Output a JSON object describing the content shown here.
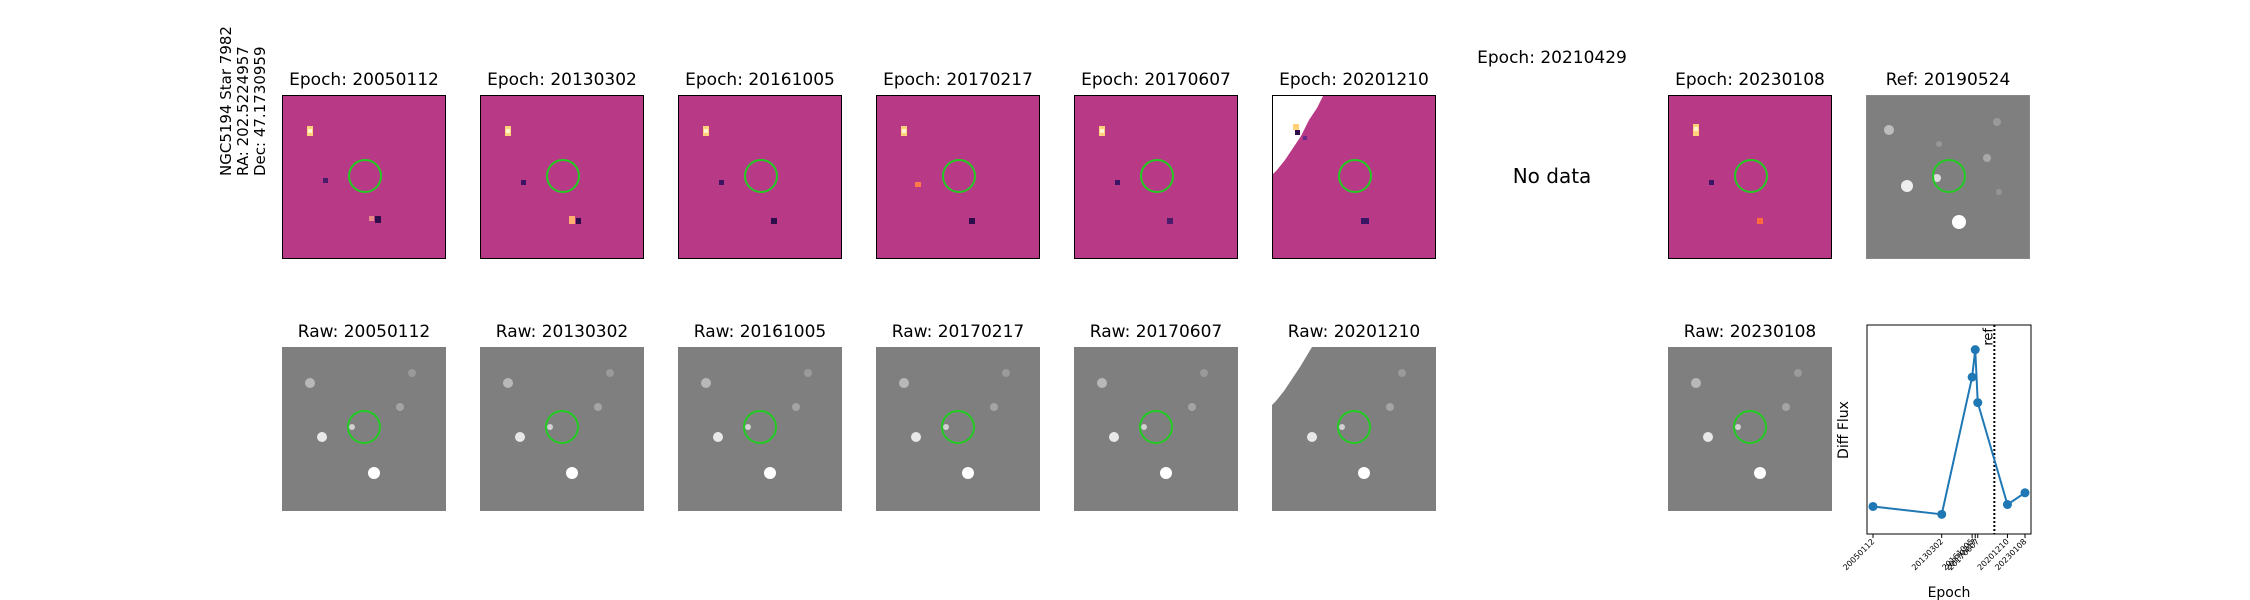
{
  "target": {
    "name": "NGC5194 Star 7982",
    "ra": "RA: 202.5224957",
    "dec": "Dec: 47.1730959"
  },
  "diff_panels": [
    {
      "title": "Epoch: 20050112",
      "has_data": true
    },
    {
      "title": "Epoch: 20130302",
      "has_data": true
    },
    {
      "title": "Epoch: 20161005",
      "has_data": true
    },
    {
      "title": "Epoch: 20170217",
      "has_data": true
    },
    {
      "title": "Epoch: 20170607",
      "has_data": true
    },
    {
      "title": "Epoch: 20201210",
      "has_data": true
    },
    {
      "title": "Epoch: 20210429",
      "has_data": false,
      "message": "No data"
    },
    {
      "title": "Epoch: 20230108",
      "has_data": true
    }
  ],
  "reference_panel": {
    "title": "Ref: 20190524"
  },
  "raw_panels": [
    {
      "title": "Raw: 20050112"
    },
    {
      "title": "Raw: 20130302"
    },
    {
      "title": "Raw: 20161005"
    },
    {
      "title": "Raw: 20170217"
    },
    {
      "title": "Raw: 20170607"
    },
    {
      "title": "Raw: 20201210"
    },
    {
      "title": "Raw: 20230108"
    }
  ],
  "colors": {
    "diff_background": "#b83a86",
    "raw_background": "#7f7f7f",
    "aperture": "#22cc22",
    "series": "#1f77b4"
  },
  "chart_data": {
    "type": "line",
    "categories": [
      "20050112",
      "20130302",
      "20161005",
      "20170217",
      "20170607",
      "20201210",
      "20230108"
    ],
    "x_days": [
      0,
      2971,
      4284,
      4419,
      4528,
      5811,
      6570
    ],
    "values": [
      0.12,
      0.08,
      0.78,
      0.92,
      0.65,
      0.13,
      0.19
    ],
    "ylim": [
      0,
      1
    ],
    "xlabel": "Epoch",
    "ylabel": "Diff Flux",
    "reference_line": {
      "label": "ref",
      "x_days": 5245,
      "style": "dotted"
    }
  }
}
